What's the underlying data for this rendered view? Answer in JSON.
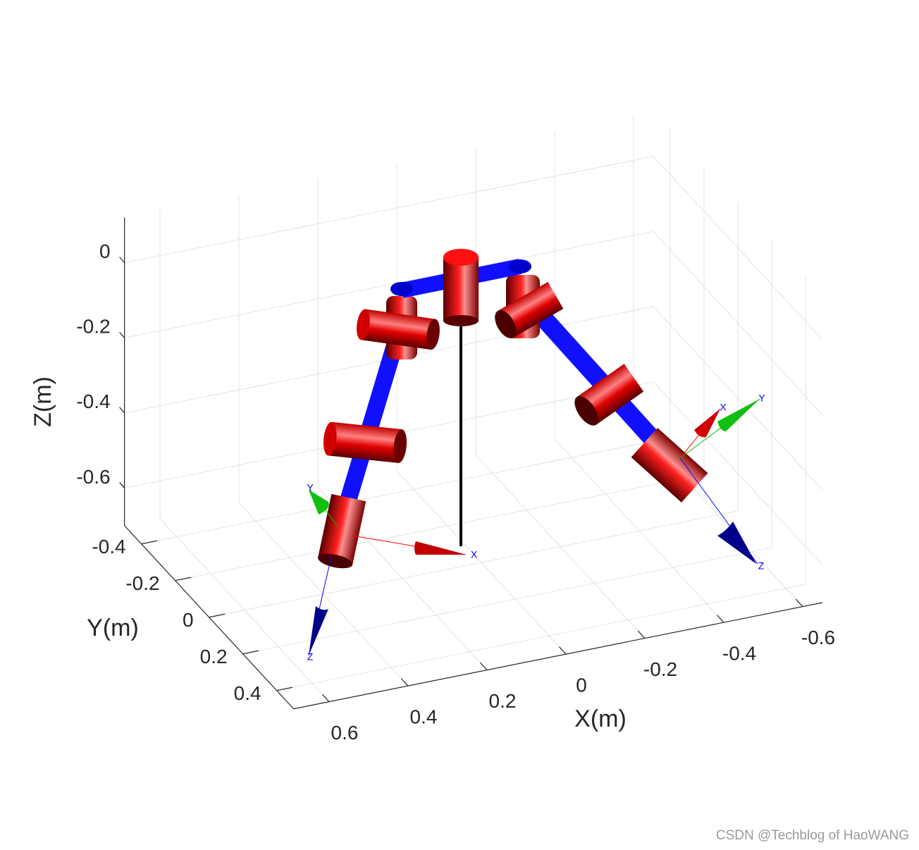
{
  "chart_data": {
    "type": "robot3d",
    "xlabel": "X(m)",
    "ylabel": "Y(m)",
    "zlabel": "Z(m)",
    "xlim": [
      0.69,
      -0.65
    ],
    "ylim": [
      -0.5,
      0.5
    ],
    "zlim": [
      -0.7,
      0.12
    ],
    "xticks": [
      -0.6,
      -0.4,
      -0.2,
      0,
      0.2,
      0.4,
      0.6
    ],
    "yticks": [
      -0.4,
      -0.2,
      0,
      0.2,
      0.4
    ],
    "zticks": [
      -0.6,
      -0.4,
      -0.2,
      0
    ],
    "grid": true,
    "frame_labels": [
      "X",
      "Z",
      "Y",
      "X",
      "Y",
      "Z"
    ],
    "watermark": "CSDN @Techblog of HaoWANG"
  }
}
